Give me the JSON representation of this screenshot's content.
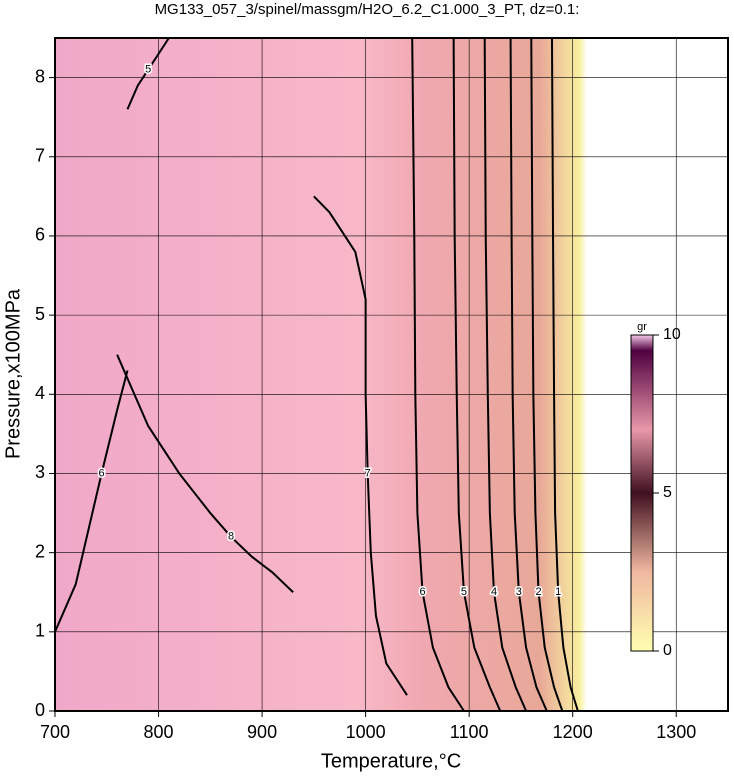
{
  "chart_data": {
    "type": "contour",
    "title": "MG133_057_3/spinel/massgm/H2O_6.2_C1.000_3_PT, dz=0.1:",
    "x_label": "Temperature,°C",
    "y_label": "Pressure,x100MPa",
    "xlim": [
      700,
      1350
    ],
    "ylim": [
      0,
      8.5
    ],
    "xticks": [
      700,
      800,
      900,
      1000,
      1100,
      1200,
      1300
    ],
    "yticks": [
      0,
      1,
      2,
      3,
      4,
      5,
      6,
      7,
      8
    ],
    "grid": true,
    "colorbar": {
      "label": "gr",
      "clim": [
        0,
        10
      ],
      "ticks": [
        0,
        5,
        10
      ],
      "colormap": [
        {
          "value": 0,
          "color": "#ffffb0"
        },
        {
          "value": 2.5,
          "color": "#f0b8a0"
        },
        {
          "value": 5,
          "color": "#401020"
        },
        {
          "value": 7,
          "color": "#e898a8"
        },
        {
          "value": 9.5,
          "color": "#500040"
        },
        {
          "value": 10,
          "color": "#f4c8e8"
        }
      ]
    },
    "contours": [
      {
        "level": 6,
        "x": [
          1045,
          1047,
          1048,
          1050,
          1055,
          1065,
          1080,
          1095
        ],
        "y": [
          8.5,
          6,
          4,
          2.5,
          1.5,
          0.8,
          0.3,
          0
        ]
      },
      {
        "level": 5,
        "x": [
          1085,
          1086,
          1088,
          1090,
          1095,
          1105,
          1120,
          1130
        ],
        "y": [
          8.5,
          6,
          4,
          2.5,
          1.5,
          0.8,
          0.3,
          0
        ]
      },
      {
        "level": 4,
        "x": [
          1115,
          1116,
          1118,
          1120,
          1124,
          1132,
          1145,
          1155
        ],
        "y": [
          8.5,
          6,
          4,
          2.5,
          1.5,
          0.8,
          0.3,
          0
        ]
      },
      {
        "level": 3,
        "x": [
          1140,
          1141,
          1142,
          1144,
          1148,
          1155,
          1165,
          1175
        ],
        "y": [
          8.5,
          6,
          4,
          2.5,
          1.5,
          0.8,
          0.3,
          0
        ]
      },
      {
        "level": 2,
        "x": [
          1160,
          1161,
          1162,
          1164,
          1167,
          1173,
          1182,
          1190
        ],
        "y": [
          8.5,
          6,
          4,
          2.5,
          1.5,
          0.8,
          0.3,
          0
        ]
      },
      {
        "level": 1,
        "x": [
          1180,
          1181,
          1182,
          1183,
          1186,
          1191,
          1198,
          1205
        ],
        "y": [
          8.5,
          6,
          4,
          2.5,
          1.5,
          0.8,
          0.3,
          0
        ]
      },
      {
        "level": 7,
        "x": [
          950,
          965,
          990,
          1000,
          1000,
          1002,
          1005,
          1010,
          1020,
          1040
        ],
        "y": [
          6.5,
          6.3,
          5.8,
          5.2,
          4.0,
          3.0,
          2.0,
          1.2,
          0.6,
          0.2
        ]
      },
      {
        "level": 8,
        "x": [
          760,
          790,
          820,
          850,
          870,
          890,
          910,
          930
        ],
        "y": [
          4.5,
          3.6,
          3.0,
          2.5,
          2.2,
          1.95,
          1.75,
          1.5
        ]
      },
      {
        "level": 6,
        "x": [
          700,
          720,
          745,
          760,
          770
        ],
        "y": [
          1.0,
          1.6,
          3.0,
          3.8,
          4.3
        ]
      },
      {
        "level": 5,
        "x": [
          770,
          780,
          790,
          810
        ],
        "y": [
          7.6,
          7.9,
          8.1,
          8.5
        ]
      }
    ]
  }
}
